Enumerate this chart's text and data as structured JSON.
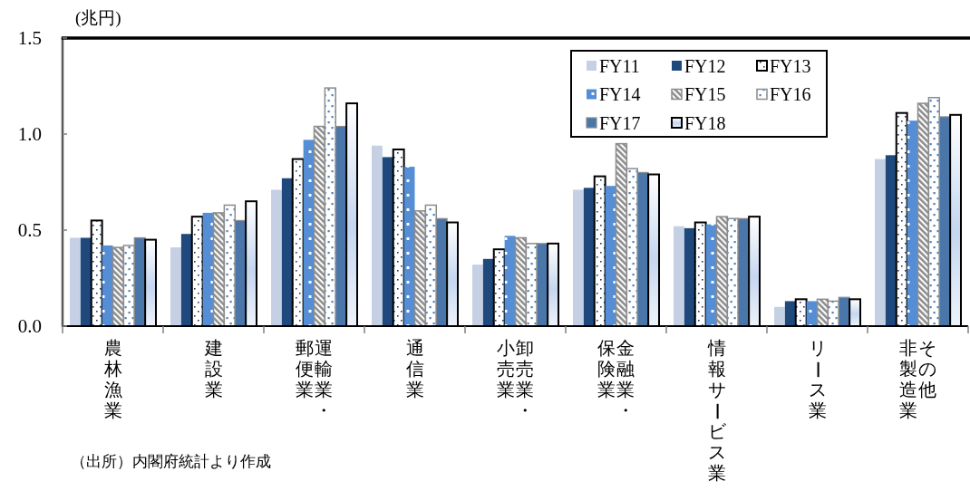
{
  "chart_data": {
    "type": "bar",
    "ylabel": "(兆円)",
    "categories": [
      "農林漁業",
      "建設業",
      "運輸業・郵便業",
      "通信業",
      "卸売業・小売業",
      "金融業・保険業",
      "情報サービス業",
      "リース業",
      "その他非製造業"
    ],
    "series": [
      {
        "name": "FY11",
        "color": "#c6d0e4",
        "values": [
          0.46,
          0.41,
          0.71,
          0.94,
          0.32,
          0.71,
          0.52,
          0.1,
          0.87
        ]
      },
      {
        "name": "FY12",
        "color": "#1f497d",
        "values": [
          0.46,
          0.48,
          0.77,
          0.88,
          0.35,
          0.72,
          0.51,
          0.13,
          0.89
        ]
      },
      {
        "name": "FY13",
        "color": "#000000",
        "values": [
          0.55,
          0.57,
          0.87,
          0.92,
          0.4,
          0.78,
          0.54,
          0.14,
          1.11
        ]
      },
      {
        "name": "FY14",
        "color": "#558ed5",
        "values": [
          0.42,
          0.59,
          0.97,
          0.83,
          0.47,
          0.73,
          0.53,
          0.13,
          1.07
        ]
      },
      {
        "name": "FY15",
        "color": "#8c8c8c",
        "values": [
          0.41,
          0.59,
          1.04,
          0.6,
          0.46,
          0.95,
          0.57,
          0.14,
          1.16
        ]
      },
      {
        "name": "FY16",
        "color": "#8c8c8c",
        "values": [
          0.42,
          0.63,
          1.24,
          0.63,
          0.43,
          0.82,
          0.56,
          0.13,
          1.19
        ]
      },
      {
        "name": "FY17",
        "color": "#4a76aa",
        "values": [
          0.46,
          0.55,
          1.04,
          0.56,
          0.43,
          0.8,
          0.56,
          0.15,
          1.09
        ]
      },
      {
        "name": "FY18",
        "color": "#000000",
        "values": [
          0.45,
          0.65,
          1.16,
          0.54,
          0.43,
          0.79,
          0.57,
          0.14,
          1.1
        ]
      }
    ],
    "ylim": [
      0,
      1.5
    ],
    "yticks": [
      {
        "value": 0,
        "label": "0.0"
      },
      0.5,
      {
        "value": 1,
        "label": "1.0"
      },
      1.5
    ],
    "legend": "top right",
    "annotations": [
      "（出所）内閣府統計より作成"
    ]
  }
}
